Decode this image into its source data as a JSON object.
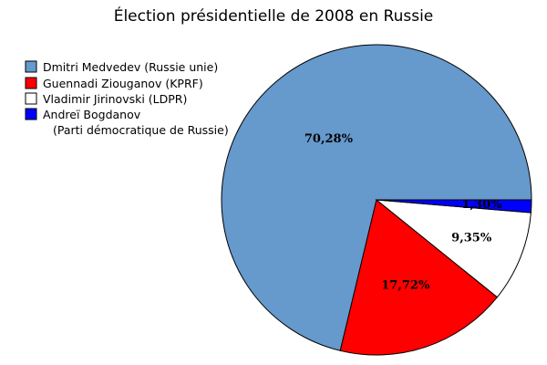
{
  "chart_data": {
    "type": "pie",
    "title": "Élection présidentielle de 2008 en Russie",
    "legend_position": "top-left",
    "slices": [
      {
        "name": "Dmitri Medvedev (Russie unie)",
        "value": 70.28,
        "label": "70,28%",
        "color": "#6699cc"
      },
      {
        "name": "Guennadi Ziouganov (KPRF)",
        "value": 17.72,
        "label": "17,72%",
        "color": "#ff0000"
      },
      {
        "name": "Vladimir Jirinovski (LDPR)",
        "value": 9.35,
        "label": "9,35%",
        "color": "#ffffff"
      },
      {
        "name": "Andreï Bogdanov",
        "name_line2": "(Parti démocratique de Russie)",
        "value": 1.3,
        "label": "1,30%",
        "color": "#0000ff"
      }
    ]
  }
}
